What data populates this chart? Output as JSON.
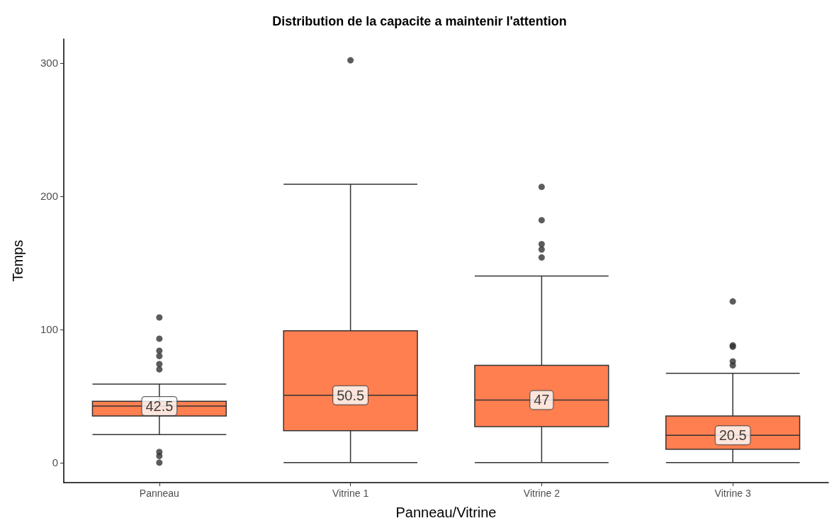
{
  "chart_data": {
    "type": "box",
    "title": "Distribution de la capacite a maintenir l'attention",
    "xlabel": "Panneau/Vitrine",
    "ylabel": "Temps",
    "categories": [
      "Panneau",
      "Vitrine 1",
      "Vitrine 2",
      "Vitrine 3"
    ],
    "series": [
      {
        "color": "#ff7f50",
        "boxes": [
          {
            "low": 21,
            "q1": 35,
            "median": 42.5,
            "q3": 46,
            "high": 59,
            "outliers": [
              109,
              93,
              84,
              80,
              74,
              70,
              8,
              5,
              0
            ]
          },
          {
            "low": 0,
            "q1": 24,
            "median": 50.5,
            "q3": 99,
            "high": 209,
            "outliers": [
              302
            ]
          },
          {
            "low": 0,
            "q1": 27,
            "median": 47,
            "q3": 73,
            "high": 140,
            "outliers": [
              207,
              182,
              164,
              160,
              154
            ]
          },
          {
            "low": 0,
            "q1": 10,
            "median": 20.5,
            "q3": 35,
            "high": 67,
            "outliers": [
              121,
              88,
              87,
              76,
              73
            ]
          }
        ]
      }
    ],
    "annotations": [
      {
        "text": "42.5",
        "x": "Panneau",
        "y": 42.5
      },
      {
        "text": "50.5",
        "x": "Vitrine 1",
        "y": 50.5
      },
      {
        "text": "47",
        "x": "Vitrine 2",
        "y": 47
      },
      {
        "text": "20.5",
        "x": "Vitrine 3",
        "y": 20.5
      }
    ],
    "ylim": [
      -15,
      318
    ],
    "yticks": [
      0,
      100,
      200,
      300
    ],
    "grid": false
  }
}
